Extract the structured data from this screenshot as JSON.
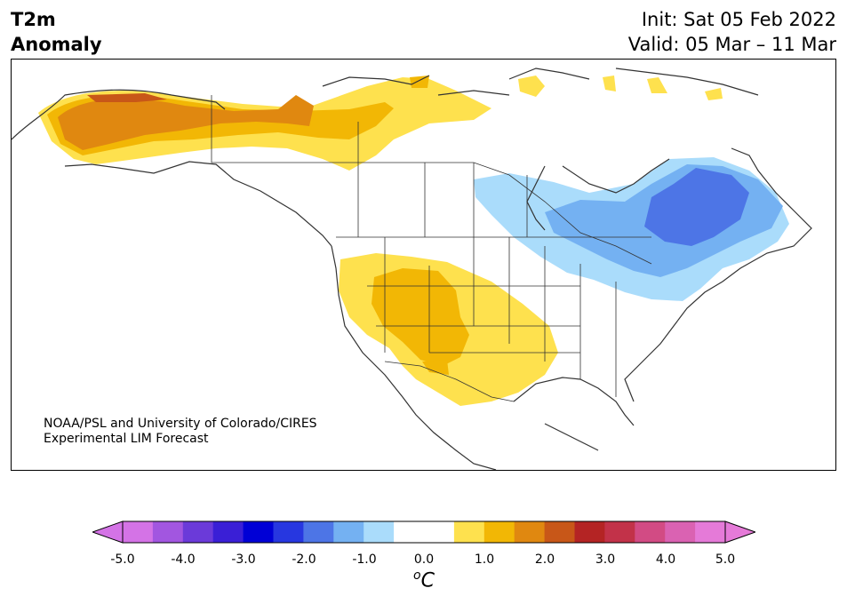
{
  "header": {
    "title_line1": "T2m",
    "title_line2": "Anomaly",
    "init": "Init: Sat 05 Feb 2022",
    "valid": "Valid: 05 Mar – 11 Mar"
  },
  "credit": {
    "line1": "NOAA/PSL and University of Colorado/CIRES",
    "line2": "Experimental LIM Forecast"
  },
  "colorbar": {
    "ticks": [
      "-5.0",
      "-4.0",
      "-3.0",
      "-2.0",
      "-1.0",
      "0.0",
      "1.0",
      "2.0",
      "3.0",
      "4.0",
      "5.0"
    ],
    "unit_base": "C",
    "unit_sup": "o",
    "colors": [
      "#d473e6",
      "#a256e0",
      "#6b3ad9",
      "#3a1fd6",
      "#0000d6",
      "#2737e0",
      "#4d75e6",
      "#74b1f2",
      "#aadcfb",
      "#ffffff",
      "#ffffff",
      "#fee14e",
      "#f2b705",
      "#e08810",
      "#c85718",
      "#b42424",
      "#c23249",
      "#d24b84",
      "#da62b2",
      "#e57ad8"
    ],
    "min_color": "#d473e6",
    "max_color": "#e57ad8"
  },
  "map": {
    "region": "North America",
    "anomaly_colors": {
      "warm1": "#fee14e",
      "warm2": "#f2b705",
      "warm3": "#e08810",
      "warm4": "#c85718",
      "cool1": "#aadcfb",
      "cool2": "#74b1f2",
      "cool3": "#4d75e6"
    }
  }
}
